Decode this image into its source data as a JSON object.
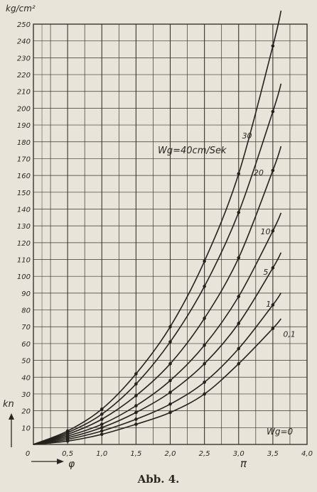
{
  "caption": "Abb. 4.",
  "chart_data": {
    "type": "line",
    "ylabel_top": "kg/cm²",
    "ylabel_axis": "kn",
    "xlabel": "φ",
    "pi_label": "π",
    "legend_title": "Wg=40cm/Sek",
    "bottom_legend": "Wg=0",
    "xlim": [
      0,
      4.0
    ],
    "ylim": [
      0,
      250
    ],
    "x_ticks": [
      "0",
      "0,5",
      "1,0",
      "1,5",
      "2,0",
      "2,5",
      "3,0",
      "3,5",
      "4,0"
    ],
    "y_ticks": [
      "10",
      "20",
      "30",
      "40",
      "50",
      "60",
      "70",
      "80",
      "90",
      "100",
      "110",
      "120",
      "130",
      "140",
      "150",
      "160",
      "170",
      "180",
      "190",
      "200",
      "210",
      "220",
      "230",
      "240",
      "250"
    ],
    "x": [
      0.5,
      1.0,
      1.5,
      2.0,
      2.5,
      3.0,
      3.5
    ],
    "series": [
      {
        "name": "30",
        "values": [
          8,
          21,
          42,
          70,
          109,
          161,
          237
        ]
      },
      {
        "name": "20",
        "values": [
          7,
          18,
          36,
          61,
          94,
          138,
          198
        ]
      },
      {
        "name": "10",
        "values": [
          6,
          15,
          29,
          48,
          75,
          111,
          163
        ]
      },
      {
        "name": "5",
        "values": [
          5,
          12,
          23,
          38,
          59,
          88,
          127
        ]
      },
      {
        "name": "1",
        "values": [
          4,
          10,
          19,
          31,
          48,
          72,
          105
        ]
      },
      {
        "name": "0,1",
        "values": [
          3,
          8,
          15,
          24,
          37,
          57,
          83
        ]
      },
      {
        "name": "",
        "values": [
          2,
          6,
          12,
          19,
          30,
          48,
          69
        ]
      }
    ],
    "grid": true
  }
}
